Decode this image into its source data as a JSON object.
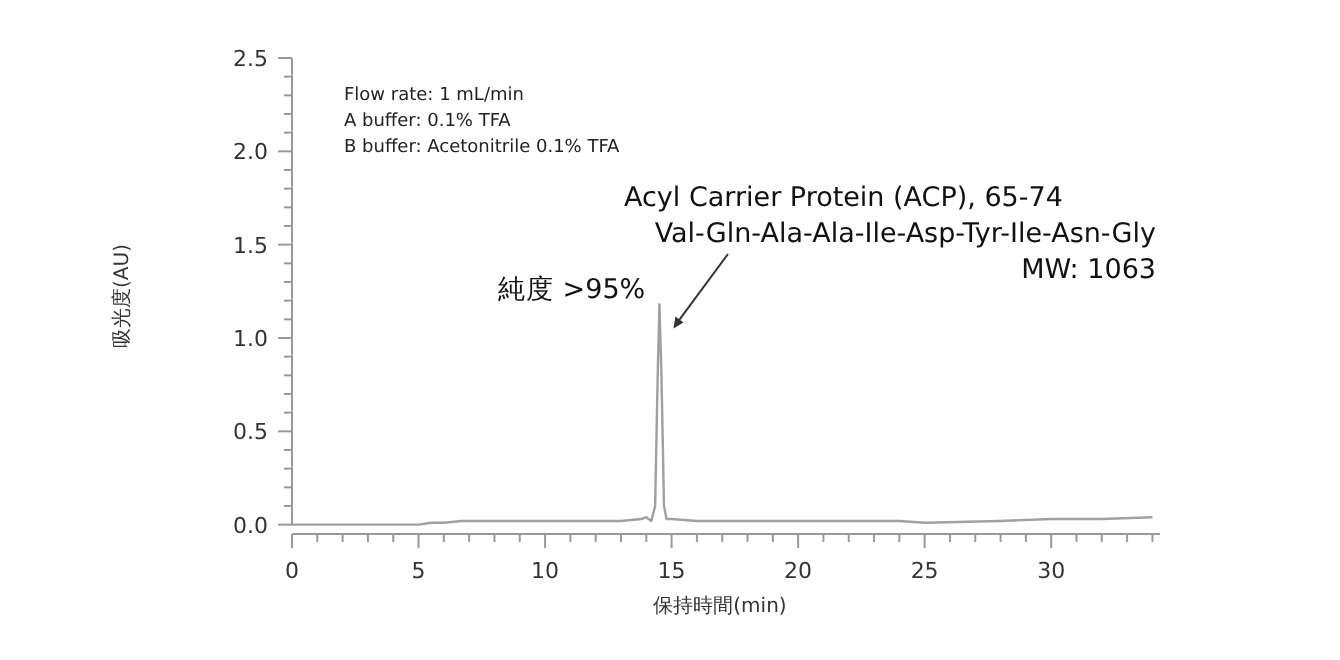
{
  "chart_data": {
    "type": "line",
    "xlabel": "保持時間(min)",
    "ylabel": "吸光度(AU)",
    "x": [
      0,
      2,
      4,
      5,
      5.5,
      6,
      6.7,
      10,
      13,
      13.8,
      14.0,
      14.2,
      14.35,
      14.45,
      14.52,
      14.6,
      14.7,
      14.8,
      15,
      16,
      17,
      20,
      24,
      25,
      28,
      30,
      32,
      34
    ],
    "series": [
      {
        "color": "#a0a0a0",
        "values": [
          0,
          0,
          0,
          0,
          0.01,
          0.01,
          0.02,
          0.02,
          0.02,
          0.03,
          0.04,
          0.02,
          0.1,
          0.8,
          1.18,
          0.8,
          0.1,
          0.03,
          0.03,
          0.02,
          0.02,
          0.02,
          0.02,
          0.01,
          0.02,
          0.03,
          0.03,
          0.04
        ]
      }
    ],
    "xlim": [
      0,
      34.3
    ],
    "ylim": [
      -0.05,
      2.5
    ],
    "xticks": [
      0,
      {
        "value": 1,
        "label": null
      },
      {
        "value": 2,
        "label": null
      },
      {
        "value": 3,
        "label": null
      },
      {
        "value": 4,
        "label": null
      },
      5,
      {
        "value": 6,
        "label": null
      },
      {
        "value": 7,
        "label": null
      },
      {
        "value": 8,
        "label": null
      },
      {
        "value": 9,
        "label": null
      },
      10,
      {
        "value": 11,
        "label": null
      },
      {
        "value": 12,
        "label": null
      },
      {
        "value": 13,
        "label": null
      },
      {
        "value": 14,
        "label": null
      },
      15,
      {
        "value": 16,
        "label": null
      },
      {
        "value": 17,
        "label": null
      },
      {
        "value": 18,
        "label": null
      },
      {
        "value": 19,
        "label": null
      },
      20,
      {
        "value": 21,
        "label": null
      },
      {
        "value": 22,
        "label": null
      },
      {
        "value": 23,
        "label": null
      },
      {
        "value": 24,
        "label": null
      },
      25,
      {
        "value": 26,
        "label": null
      },
      {
        "value": 27,
        "label": null
      },
      {
        "value": 28,
        "label": null
      },
      {
        "value": 29,
        "label": null
      },
      30,
      {
        "value": 31,
        "label": null
      },
      {
        "value": 32,
        "label": null
      },
      {
        "value": 33,
        "label": null
      },
      {
        "value": 34,
        "label": null
      }
    ],
    "yticks": [
      {
        "value": 0,
        "label": "0.0"
      },
      {
        "value": 0.1,
        "label": null
      },
      {
        "value": 0.2,
        "label": null
      },
      {
        "value": 0.3,
        "label": null
      },
      {
        "value": 0.4,
        "label": null
      },
      0.5,
      {
        "value": 0.6,
        "label": null
      },
      {
        "value": 0.7,
        "label": null
      },
      {
        "value": 0.8,
        "label": null
      },
      {
        "value": 0.9,
        "label": null
      },
      {
        "value": 1,
        "label": "1.0"
      },
      {
        "value": 1.1,
        "label": null
      },
      {
        "value": 1.2,
        "label": null
      },
      {
        "value": 1.3,
        "label": null
      },
      {
        "value": 1.4,
        "label": null
      },
      1.5,
      {
        "value": 1.6,
        "label": null
      },
      {
        "value": 1.7,
        "label": null
      },
      {
        "value": 1.8,
        "label": null
      },
      {
        "value": 1.9,
        "label": null
      },
      {
        "value": 2,
        "label": "2.0"
      },
      {
        "value": 2.1,
        "label": null
      },
      {
        "value": 2.2,
        "label": null
      },
      {
        "value": 2.3,
        "label": null
      },
      {
        "value": 2.4,
        "label": null
      },
      2.5
    ],
    "grid": false,
    "marker": "none",
    "line_style": "solid",
    "annotations": [
      "Flow rate: 1 mL/min",
      "A buffer: 0.1% TFA",
      "B buffer: Acetonitrile 0.1% TFA",
      "Acyl Carrier Protein (ACP), 65-74",
      "Val-Gln-Ala-Ala-Ile-Asp-Tyr-Ile-Asn-Gly",
      "MW: 1063",
      "純度 >95%"
    ]
  }
}
